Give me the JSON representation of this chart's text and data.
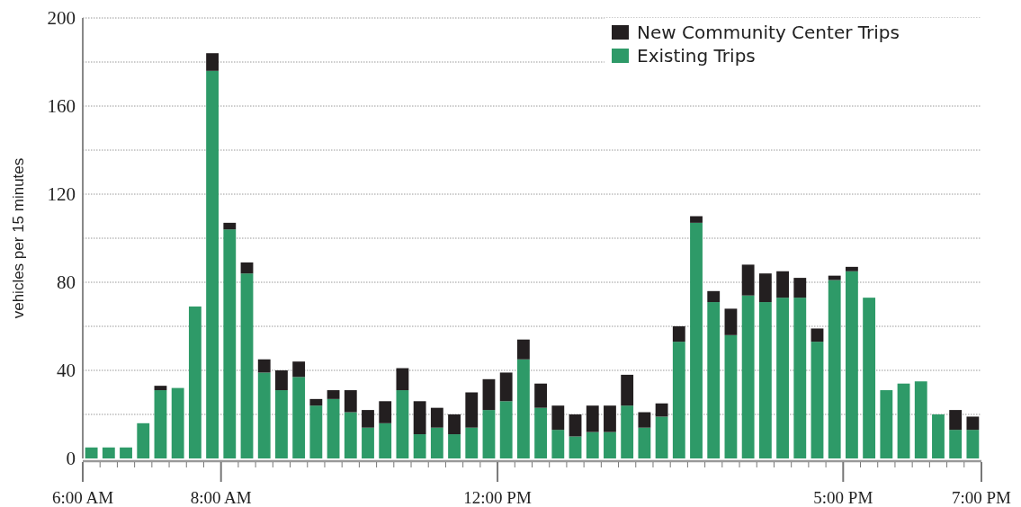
{
  "chart_data": {
    "type": "bar",
    "stacked": true,
    "ylabel": "vehicles per 15 minutes",
    "x": [
      6.125,
      6.375,
      6.625,
      6.875,
      7.125,
      7.375,
      7.625,
      7.875,
      8.125,
      8.375,
      8.625,
      8.875,
      9.125,
      9.375,
      9.625,
      9.875,
      10.125,
      10.375,
      10.625,
      10.875,
      11.125,
      11.375,
      11.625,
      11.875,
      12.125,
      12.375,
      12.625,
      12.875,
      13.125,
      13.375,
      13.625,
      13.875,
      14.125,
      14.375,
      14.625,
      14.875,
      15.125,
      15.375,
      15.625,
      15.875,
      16.125,
      16.375,
      16.625,
      16.875,
      17.125,
      17.375,
      17.625,
      17.875,
      18.125,
      18.375,
      18.625,
      18.875
    ],
    "series": [
      {
        "name": "Existing Trips",
        "color": "#2e9a68",
        "values": [
          5,
          5,
          5,
          16,
          31,
          32,
          69,
          176,
          104,
          84,
          39,
          31,
          37,
          24,
          27,
          21,
          14,
          16,
          31,
          11,
          14,
          11,
          14,
          22,
          26,
          45,
          23,
          13,
          10,
          12,
          12,
          24,
          14,
          19,
          53,
          107,
          71,
          56,
          74,
          71,
          73,
          73,
          53,
          81,
          85,
          73,
          31,
          34,
          35,
          20,
          13,
          13
        ]
      },
      {
        "name": "New Community Center Trips",
        "color": "#231f20",
        "values": [
          0,
          0,
          0,
          0,
          2,
          0,
          0,
          8,
          3,
          5,
          6,
          9,
          7,
          3,
          4,
          10,
          8,
          10,
          10,
          15,
          9,
          9,
          16,
          14,
          13,
          9,
          11,
          11,
          10,
          12,
          12,
          14,
          7,
          6,
          7,
          3,
          5,
          12,
          14,
          13,
          12,
          9,
          6,
          2,
          2,
          0,
          0,
          0,
          0,
          0,
          9,
          6
        ]
      }
    ],
    "xlim": [
      6,
      19
    ],
    "xticks": [
      {
        "value": 6,
        "label": "6:00 AM"
      },
      {
        "value": 6.25,
        "label": null
      },
      {
        "value": 6.5,
        "label": null
      },
      {
        "value": 6.75,
        "label": null
      },
      {
        "value": 7,
        "label": null
      },
      {
        "value": 7.25,
        "label": null
      },
      {
        "value": 7.5,
        "label": null
      },
      {
        "value": 7.75,
        "label": null
      },
      {
        "value": 8,
        "label": "8:00 AM"
      },
      {
        "value": 8.25,
        "label": null
      },
      {
        "value": 8.5,
        "label": null
      },
      {
        "value": 8.75,
        "label": null
      },
      {
        "value": 9,
        "label": null
      },
      {
        "value": 9.25,
        "label": null
      },
      {
        "value": 9.5,
        "label": null
      },
      {
        "value": 9.75,
        "label": null
      },
      {
        "value": 10,
        "label": null
      },
      {
        "value": 10.25,
        "label": null
      },
      {
        "value": 10.5,
        "label": null
      },
      {
        "value": 10.75,
        "label": null
      },
      {
        "value": 11,
        "label": null
      },
      {
        "value": 11.25,
        "label": null
      },
      {
        "value": 11.5,
        "label": null
      },
      {
        "value": 11.75,
        "label": null
      },
      {
        "value": 12,
        "label": "12:00 PM"
      },
      {
        "value": 12.25,
        "label": null
      },
      {
        "value": 12.5,
        "label": null
      },
      {
        "value": 12.75,
        "label": null
      },
      {
        "value": 13,
        "label": null
      },
      {
        "value": 13.25,
        "label": null
      },
      {
        "value": 13.5,
        "label": null
      },
      {
        "value": 13.75,
        "label": null
      },
      {
        "value": 14,
        "label": null
      },
      {
        "value": 14.25,
        "label": null
      },
      {
        "value": 14.5,
        "label": null
      },
      {
        "value": 14.75,
        "label": null
      },
      {
        "value": 15,
        "label": null
      },
      {
        "value": 15.25,
        "label": null
      },
      {
        "value": 15.5,
        "label": null
      },
      {
        "value": 15.75,
        "label": null
      },
      {
        "value": 16,
        "label": null
      },
      {
        "value": 16.25,
        "label": null
      },
      {
        "value": 16.5,
        "label": null
      },
      {
        "value": 16.75,
        "label": null
      },
      {
        "value": 17,
        "label": "5:00 PM"
      },
      {
        "value": 17.25,
        "label": null
      },
      {
        "value": 17.5,
        "label": null
      },
      {
        "value": 17.75,
        "label": null
      },
      {
        "value": 18,
        "label": null
      },
      {
        "value": 18.25,
        "label": null
      },
      {
        "value": 18.5,
        "label": null
      },
      {
        "value": 18.75,
        "label": null
      },
      {
        "value": 19,
        "label": "7:00 PM"
      }
    ],
    "ylim": [
      0,
      200
    ],
    "yticks": [
      0,
      {
        "value": 20,
        "label": null
      },
      40,
      {
        "value": 60,
        "label": null
      },
      80,
      {
        "value": 100,
        "label": null
      },
      120,
      {
        "value": 140,
        "label": null
      },
      160,
      {
        "value": 180,
        "label": null
      },
      200
    ],
    "grid": "y",
    "legend": "top right"
  }
}
